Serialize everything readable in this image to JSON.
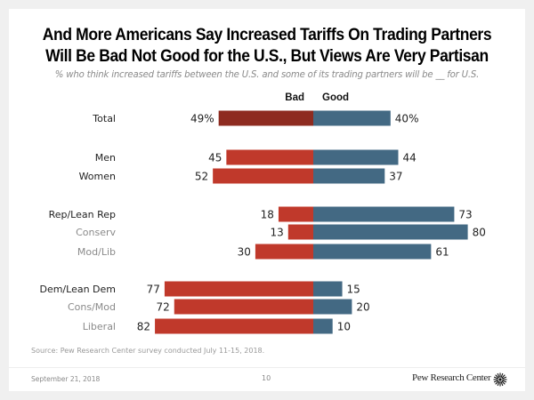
{
  "chart_data": {
    "type": "bar",
    "subtype": "diverging-horizontal",
    "title": "And More Americans Say Increased Tariffs On Trading Partners Will Be Bad Not Good for the U.S., But Views Are Very Partisan",
    "title_lines": [
      "And More Americans Say Increased Tariffs On Trading Partners",
      "Will Be Bad Not Good for the U.S., But Views Are Very Partisan"
    ],
    "subtitle": "% who think increased tariffs between the U.S. and some of its trading partners will be __ for U.S.",
    "column_headers": {
      "bad": "Bad",
      "good": "Good"
    },
    "categories": [
      "Total",
      "Men",
      "Women",
      "Rep/Lean Rep",
      "Conserv",
      "Mod/Lib",
      "Dem/Lean Dem",
      "Cons/Mod",
      "Liberal"
    ],
    "groups": [
      {
        "rows": [
          {
            "label": "Total",
            "bad": 49,
            "good": 40,
            "bad_label": "49%",
            "good_label": "40%",
            "style": "total"
          }
        ]
      },
      {
        "rows": [
          {
            "label": "Men",
            "bad": 45,
            "good": 44,
            "bad_label": "45",
            "good_label": "44",
            "style": "main"
          },
          {
            "label": "Women",
            "bad": 52,
            "good": 37,
            "bad_label": "52",
            "good_label": "37",
            "style": "main"
          }
        ]
      },
      {
        "rows": [
          {
            "label": "Rep/Lean Rep",
            "bad": 18,
            "good": 73,
            "bad_label": "18",
            "good_label": "73",
            "style": "main"
          },
          {
            "label": "Conserv",
            "bad": 13,
            "good": 80,
            "bad_label": "13",
            "good_label": "80",
            "style": "sub"
          },
          {
            "label": "Mod/Lib",
            "bad": 30,
            "good": 61,
            "bad_label": "30",
            "good_label": "61",
            "style": "sub"
          }
        ]
      },
      {
        "rows": [
          {
            "label": "Dem/Lean Dem",
            "bad": 77,
            "good": 15,
            "bad_label": "77",
            "good_label": "15",
            "style": "main"
          },
          {
            "label": "Cons/Mod",
            "bad": 72,
            "good": 20,
            "bad_label": "72",
            "good_label": "20",
            "style": "sub"
          },
          {
            "label": "Liberal",
            "bad": 82,
            "good": 10,
            "bad_label": "82",
            "good_label": "10",
            "style": "sub"
          }
        ]
      }
    ],
    "series": [
      {
        "name": "Bad",
        "values": [
          49,
          45,
          52,
          18,
          13,
          30,
          77,
          72,
          82
        ]
      },
      {
        "name": "Good",
        "values": [
          40,
          44,
          37,
          73,
          80,
          61,
          15,
          20,
          10
        ]
      }
    ],
    "xlim": [
      -82,
      80
    ],
    "colors": {
      "bad_total": "#8e2b20",
      "bad": "#c0392b",
      "good": "#436983"
    },
    "legend": "top-center",
    "grid": false
  },
  "footer": {
    "source": "Source: Pew Research Center survey conducted July 11-15, 2018.",
    "date": "September 21, 2018",
    "page_number": "10",
    "brand": "Pew Research Center"
  },
  "icons": {
    "logo": "pew-sunburst-logo-icon"
  }
}
